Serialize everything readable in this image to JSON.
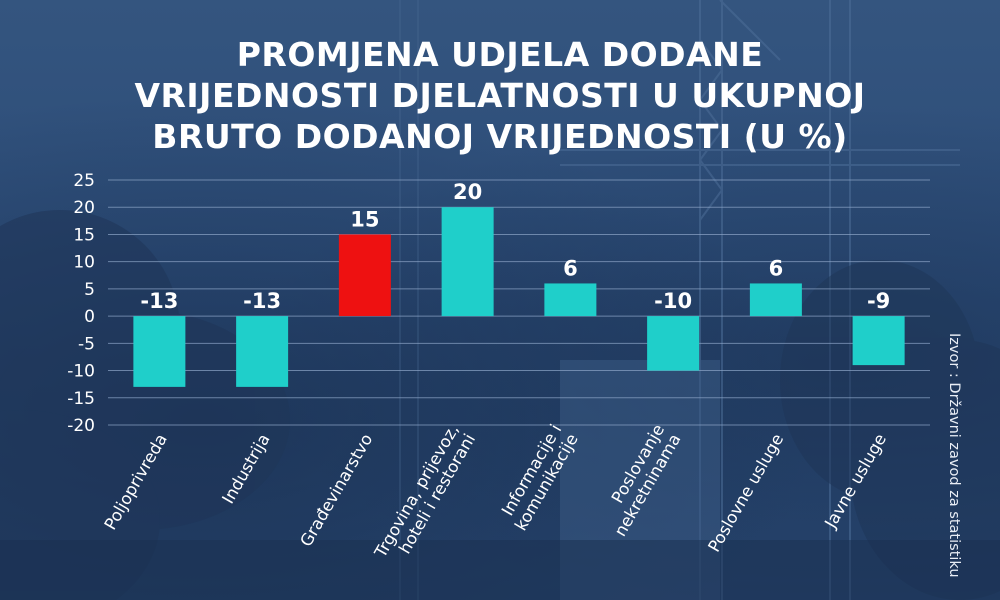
{
  "title_lines": [
    "PROMJENA UDJELA DODANE",
    "VRIJEDNOSTI DJELATNOSTI U UKUPNOJ",
    "BRUTO DODANOJ VRIJEDNOSTI (U %)"
  ],
  "source": "Izvor : Državni zavod za statistiku",
  "chart_data": {
    "type": "bar",
    "title": "PROMJENA UDJELA DODANE VRIJEDNOSTI DJELATNOSTI U UKUPNOJ BRUTO DODANOJ VRIJEDNOSTI (U %)",
    "categories": [
      [
        "Poljoprivreda"
      ],
      [
        "Industrija"
      ],
      [
        "Građevinarstvo"
      ],
      [
        "Trgovina, prijevoz,",
        "hoteli i restorani"
      ],
      [
        "Informacije i",
        "komunikacije"
      ],
      [
        "Poslovanje",
        "nekretninama"
      ],
      [
        "Poslovne usluge"
      ],
      [
        "Javne usluge"
      ]
    ],
    "values": [
      -13,
      -13,
      15,
      20,
      6,
      -10,
      6,
      -9
    ],
    "value_labels": [
      "-13",
      "-13",
      "15",
      "20",
      "6",
      "-10",
      "6",
      "-9"
    ],
    "ylim": [
      -20,
      25
    ],
    "yticks": [
      25,
      20,
      15,
      10,
      5,
      0,
      -5,
      -10,
      -15,
      -20
    ],
    "grid": true,
    "colors": {
      "default": "#1fcfca",
      "highlight": "#ee1111",
      "highlight_index": 2,
      "grid": "#8ea6c8",
      "text": "#ffffff"
    }
  }
}
